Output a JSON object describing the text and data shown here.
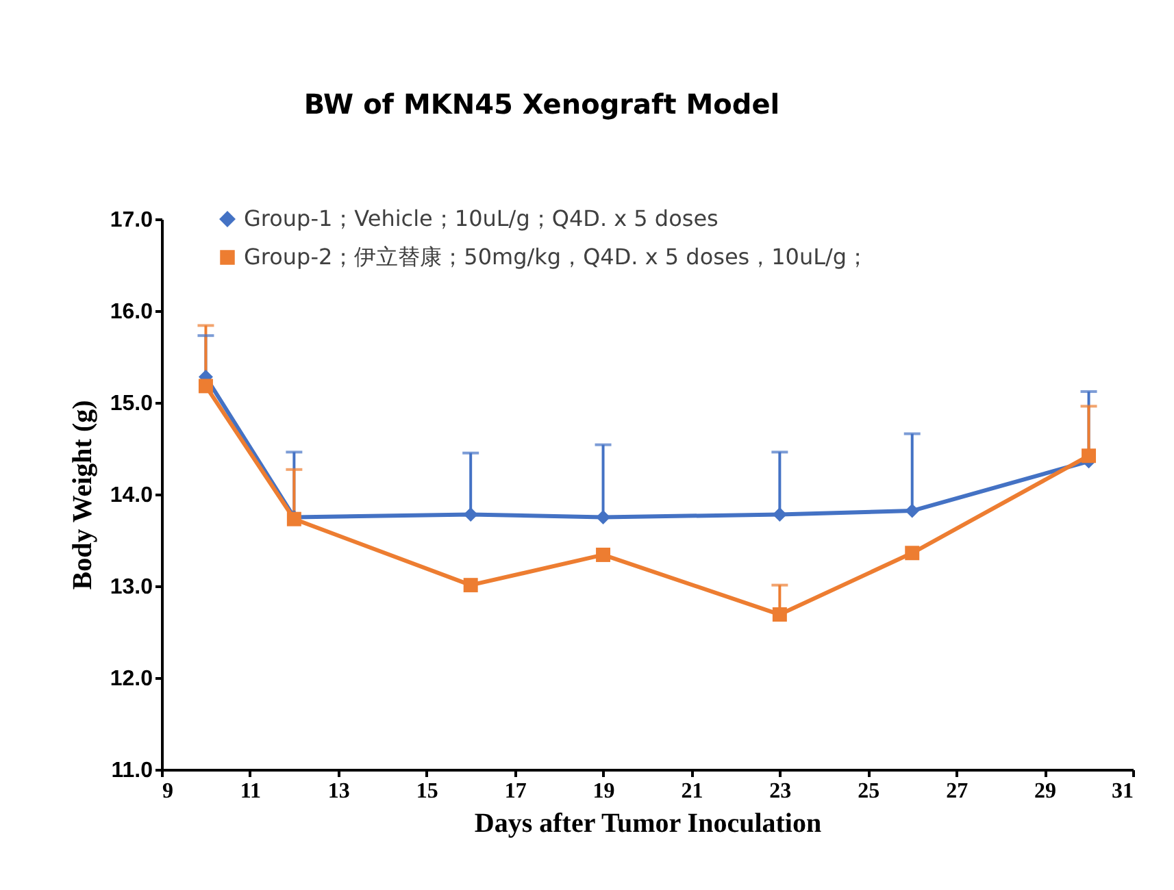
{
  "chart_data": {
    "type": "line",
    "title": "BW of MKN45 Xenograft Model",
    "xlabel": "Days after Tumor Inoculation",
    "ylabel": "Body Weight (g)",
    "x": [
      10,
      12,
      16,
      19,
      23,
      26,
      30
    ],
    "series": [
      {
        "name": "Group-1；Vehicle；10uL/g；Q4D. x 5 doses",
        "color": "#4472c4",
        "marker": "diamond",
        "values": [
          15.28,
          13.75,
          13.78,
          13.75,
          13.78,
          13.82,
          14.36
        ],
        "errors": [
          [
            15.28,
            15.73
          ],
          [
            13.75,
            14.46
          ],
          [
            13.78,
            14.45
          ],
          [
            13.75,
            14.54
          ],
          [
            13.78,
            14.46
          ],
          [
            13.82,
            14.66
          ],
          [
            14.36,
            15.12
          ]
        ]
      },
      {
        "name": "Group-2；伊立替康；50mg/kg，Q4D. x 5 doses，10uL/g；",
        "color": "#ed7d31",
        "marker": "square",
        "values": [
          15.18,
          13.73,
          13.01,
          13.34,
          12.69,
          13.36,
          14.42
        ],
        "errors": [
          [
            15.18,
            15.84
          ],
          [
            13.73,
            14.27
          ],
          null,
          null,
          [
            12.69,
            13.01
          ],
          null,
          [
            14.42,
            14.96
          ]
        ]
      }
    ],
    "xlim": [
      9,
      31
    ],
    "xticks": [
      9,
      11,
      13,
      15,
      17,
      19,
      21,
      23,
      25,
      27,
      29,
      31
    ],
    "ylim": [
      11,
      17
    ],
    "yticks": [
      {
        "value": 11,
        "label": "11.0"
      },
      {
        "value": 12,
        "label": "12.0"
      },
      {
        "value": 13,
        "label": "13.0"
      },
      {
        "value": 14,
        "label": "14.0"
      },
      {
        "value": 15,
        "label": "15.0"
      },
      {
        "value": 16,
        "label": "16.0"
      },
      {
        "value": 17,
        "label": "17.0"
      }
    ],
    "grid": false,
    "legend": "top left"
  }
}
